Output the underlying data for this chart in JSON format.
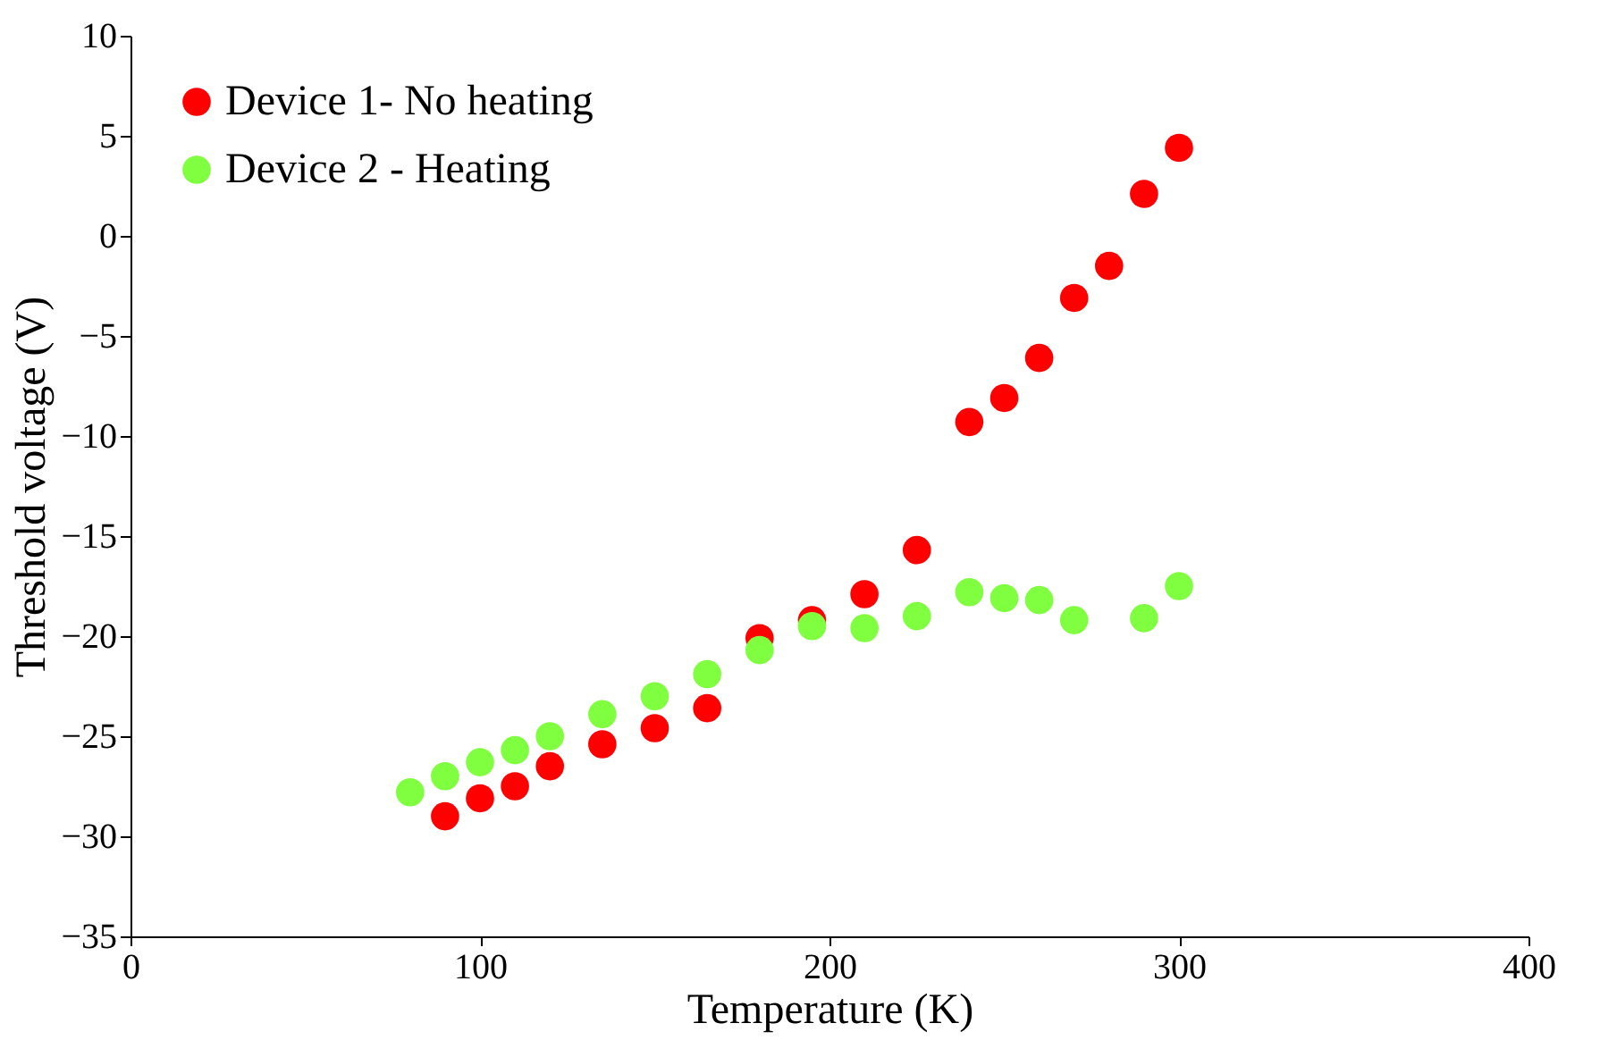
{
  "chart_data": {
    "type": "scatter",
    "xlabel": "Temperature (K)",
    "ylabel": "Threshold voltage (V)",
    "xlim": [
      0,
      400
    ],
    "xticks": [
      0,
      100,
      200,
      300,
      400
    ],
    "ylim": [
      -35,
      10
    ],
    "yticks": [
      -35,
      -30,
      -25,
      -20,
      -15,
      -10,
      -5,
      0,
      5,
      10
    ],
    "grid": false,
    "legend": "top left",
    "marker": "circle",
    "series": [
      {
        "name": "Device 1- No heating",
        "color": "#ff0000",
        "x": [
          90,
          100,
          110,
          120,
          135,
          150,
          165,
          180,
          195,
          210,
          225,
          240,
          250,
          260,
          270,
          280,
          290,
          300
        ],
        "values": [
          -29,
          -28.1,
          -27.5,
          -26.5,
          -25.4,
          -24.6,
          -23.6,
          -20.1,
          -19.2,
          -17.9,
          -15.7,
          -9.3,
          -8.1,
          -6.1,
          -3.1,
          -1.5,
          2.1,
          4.4
        ]
      },
      {
        "name": "Device 2 - Heating",
        "color": "#80ff40",
        "x": [
          80,
          90,
          100,
          110,
          120,
          135,
          150,
          165,
          180,
          195,
          210,
          225,
          240,
          250,
          260,
          270,
          290,
          300
        ],
        "values": [
          -27.8,
          -27,
          -26.3,
          -25.7,
          -25,
          -23.9,
          -23,
          -21.9,
          -20.7,
          -19.5,
          -19.6,
          -19,
          -17.8,
          -18.1,
          -18.2,
          -19.2,
          -19.1,
          -17.5
        ]
      }
    ]
  }
}
